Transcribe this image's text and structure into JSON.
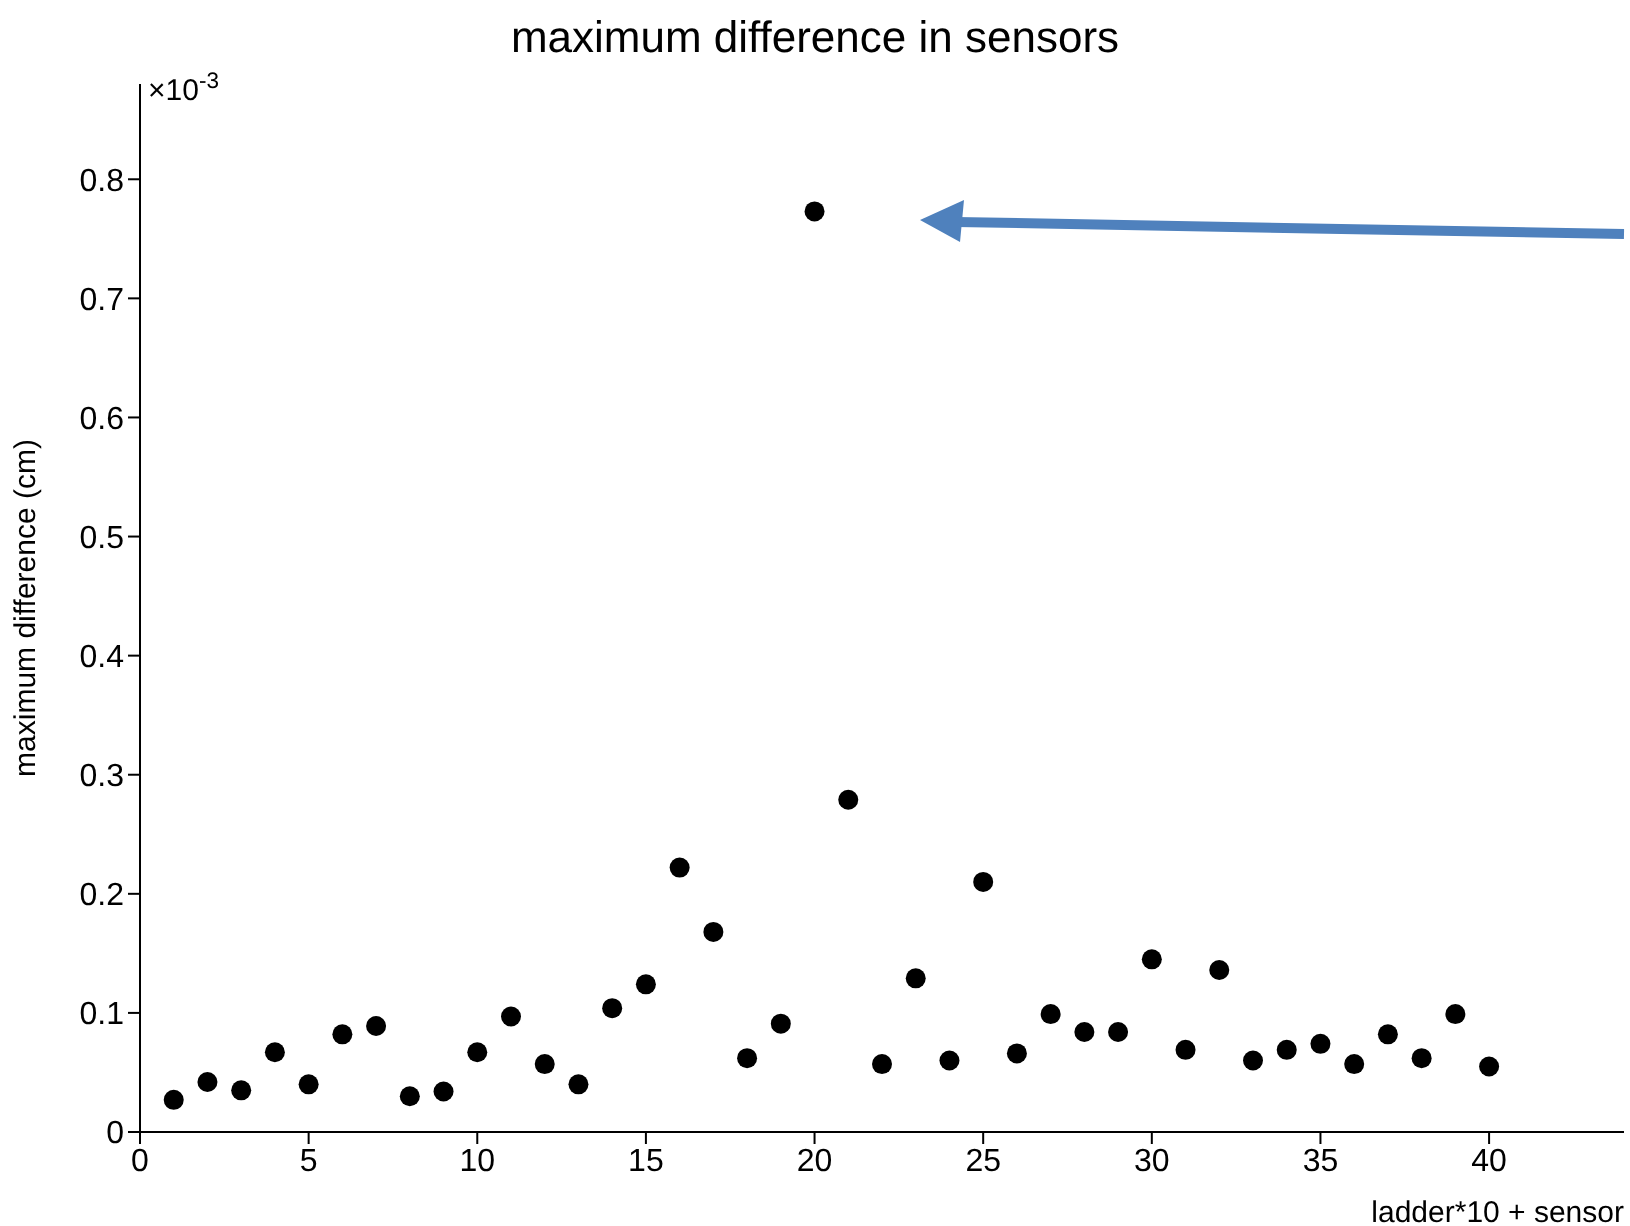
{
  "chart_data": {
    "type": "scatter",
    "title": "maximum difference in sensors",
    "xlabel": "ladder*10 + sensor",
    "ylabel": "maximum difference (cm)",
    "annotations": [
      "×10$^{-3}$"
    ],
    "x": [
      1,
      2,
      3,
      4,
      5,
      6,
      7,
      8,
      9,
      10,
      11,
      12,
      13,
      14,
      15,
      16,
      17,
      18,
      19,
      20,
      21,
      22,
      23,
      24,
      25,
      26,
      27,
      28,
      29,
      30,
      31,
      32,
      33,
      34,
      35,
      36,
      37,
      38,
      39,
      40
    ],
    "series": [
      {
        "color": "#000000",
        "values": [
          0.027,
          0.042,
          0.035,
          0.067,
          0.04,
          0.082,
          0.089,
          0.03,
          0.034,
          0.067,
          0.097,
          0.057,
          0.04,
          0.104,
          0.124,
          0.222,
          0.168,
          0.062,
          0.091,
          0.773,
          0.279,
          0.057,
          0.129,
          0.06,
          0.21,
          0.066,
          0.099,
          0.084,
          0.084,
          0.145,
          0.069,
          0.136,
          0.06,
          0.069,
          0.074,
          0.057,
          0.082,
          0.062,
          0.099,
          0.055
        ]
      }
    ],
    "xlim": [
      0,
      44
    ],
    "xticks": [
      0,
      5,
      10,
      15,
      20,
      25,
      30,
      35,
      40
    ],
    "ylim": [
      0,
      0.88
    ],
    "yticks": [
      0,
      0.1,
      0.2,
      0.3,
      0.4,
      0.5,
      0.6,
      0.7,
      0.8
    ],
    "marker": "circle",
    "grid": false
  }
}
